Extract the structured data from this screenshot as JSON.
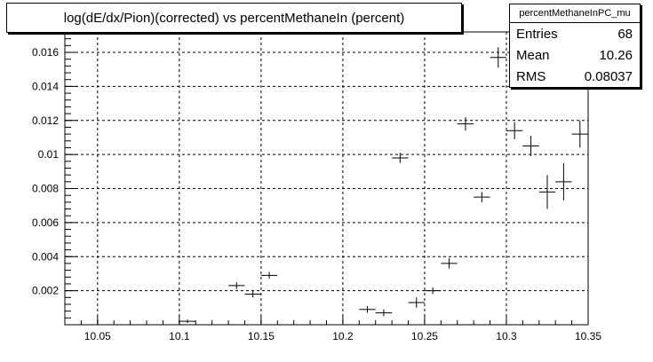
{
  "chart_data": {
    "type": "scatter",
    "title": "log(dE/dx/Pion)(corrected) vs percentMethaneIn (percent)",
    "xlim": [
      10.03,
      10.35
    ],
    "ylim": [
      0.0,
      0.0172
    ],
    "x_ticks": [
      "10.05",
      "10.1",
      "10.15",
      "10.2",
      "10.25",
      "10.3",
      "10.35"
    ],
    "x_tick_values": [
      10.05,
      10.1,
      10.15,
      10.2,
      10.25,
      10.3,
      10.35
    ],
    "y_ticks": [
      "0.002",
      "0.004",
      "0.006",
      "0.008",
      "0.01",
      "0.012",
      "0.014",
      "0.016"
    ],
    "y_tick_values": [
      0.002,
      0.004,
      0.006,
      0.008,
      0.01,
      0.012,
      0.014,
      0.016
    ],
    "grid": true,
    "points": [
      {
        "x": 10.105,
        "y": 0.0002,
        "ex": 0.005,
        "ey": 0.0001
      },
      {
        "x": 10.135,
        "y": 0.0023,
        "ex": 0.005,
        "ey": 0.0002
      },
      {
        "x": 10.145,
        "y": 0.0018,
        "ex": 0.005,
        "ey": 0.0002
      },
      {
        "x": 10.155,
        "y": 0.0029,
        "ex": 0.005,
        "ey": 0.0002
      },
      {
        "x": 10.215,
        "y": 0.0009,
        "ex": 0.005,
        "ey": 0.0002
      },
      {
        "x": 10.225,
        "y": 0.0007,
        "ex": 0.005,
        "ey": 0.0002
      },
      {
        "x": 10.235,
        "y": 0.0098,
        "ex": 0.005,
        "ey": 0.0003
      },
      {
        "x": 10.245,
        "y": 0.0013,
        "ex": 0.005,
        "ey": 0.0003
      },
      {
        "x": 10.255,
        "y": 0.002,
        "ex": 0.005,
        "ey": 0.0002
      },
      {
        "x": 10.265,
        "y": 0.0036,
        "ex": 0.005,
        "ey": 0.0003
      },
      {
        "x": 10.275,
        "y": 0.0118,
        "ex": 0.005,
        "ey": 0.0004
      },
      {
        "x": 10.285,
        "y": 0.0075,
        "ex": 0.005,
        "ey": 0.0003
      },
      {
        "x": 10.295,
        "y": 0.0157,
        "ex": 0.005,
        "ey": 0.0006
      },
      {
        "x": 10.305,
        "y": 0.0114,
        "ex": 0.005,
        "ey": 0.0005
      },
      {
        "x": 10.315,
        "y": 0.0105,
        "ex": 0.005,
        "ey": 0.0006
      },
      {
        "x": 10.325,
        "y": 0.0078,
        "ex": 0.005,
        "ey": 0.001
      },
      {
        "x": 10.335,
        "y": 0.0084,
        "ex": 0.005,
        "ey": 0.0011
      },
      {
        "x": 10.345,
        "y": 0.0112,
        "ex": 0.005,
        "ey": 0.0008
      }
    ]
  },
  "stats": {
    "name": "percentMethaneInPC_mu",
    "rows": [
      {
        "label": "Entries",
        "value": "68"
      },
      {
        "label": "Mean",
        "value": "10.26"
      },
      {
        "label": "RMS",
        "value": "0.08037"
      }
    ]
  }
}
